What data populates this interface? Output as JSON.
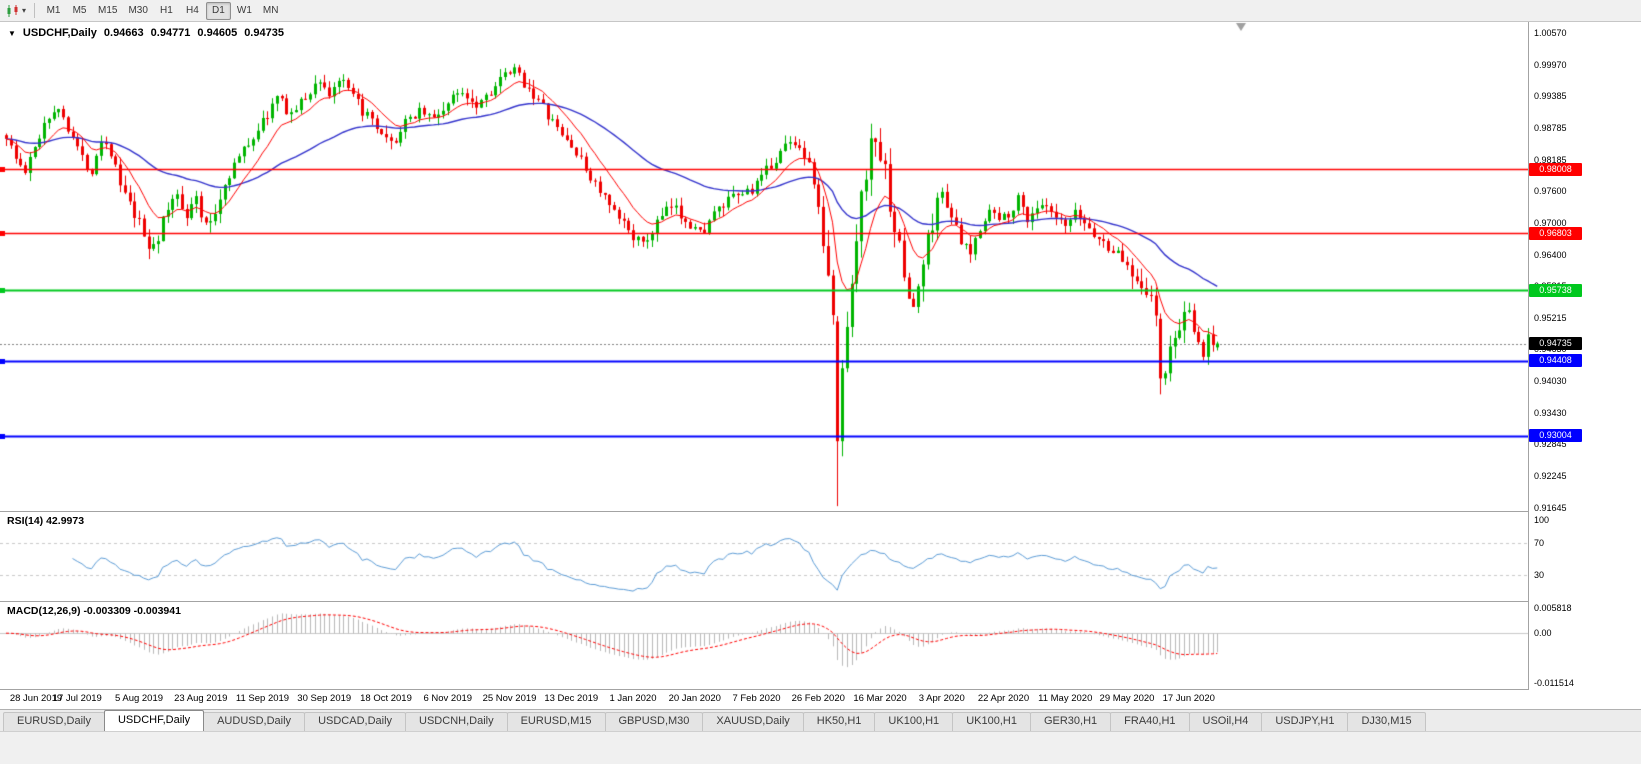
{
  "icons": {
    "chart_menu_arrow": "▼",
    "toolbar_dropdown": "▾"
  },
  "toolbar": {
    "chart_type_icon": "candlestick-chart-icon",
    "timeframes": [
      "M1",
      "M5",
      "M15",
      "M30",
      "H1",
      "H4",
      "D1",
      "W1",
      "MN"
    ],
    "active_timeframe": "D1"
  },
  "chart_data": {
    "type": "candlestick",
    "symbol": "USDCHF",
    "period": "Daily",
    "title": "USDCHF,Daily",
    "ohlc_text": {
      "o": "0.94663",
      "h": "0.94771",
      "l": "0.94605",
      "c": "0.94735"
    },
    "bid": 0.94735,
    "ylim": [
      0.91645,
      1.0057
    ],
    "y_ticks": [
      "1.00570",
      "0.99970",
      "0.99385",
      "0.98785",
      "0.98185",
      "0.97600",
      "0.97000",
      "0.96400",
      "0.95815",
      "0.95215",
      "0.94630",
      "0.94030",
      "0.93430",
      "0.92845",
      "0.92245",
      "0.91645"
    ],
    "x_tick_labels": [
      "28 Jun 2019",
      "17 Jul 2019",
      "5 Aug 2019",
      "23 Aug 2019",
      "11 Sep 2019",
      "30 Sep 2019",
      "18 Oct 2019",
      "6 Nov 2019",
      "25 Nov 2019",
      "13 Dec 2019",
      "1 Jan 2020",
      "20 Jan 2020",
      "7 Feb 2020",
      "26 Feb 2020",
      "16 Mar 2020",
      "3 Apr 2020",
      "22 Apr 2020",
      "11 May 2020",
      "29 May 2020",
      "17 Jun 2020"
    ],
    "x_tick_indices": [
      2,
      15,
      28,
      41,
      54,
      67,
      80,
      93,
      106,
      119,
      132,
      145,
      158,
      171,
      184,
      197,
      210,
      223,
      236,
      249
    ],
    "n_candles": 256,
    "seed": 1337,
    "base_volatility": 0.0011,
    "vol_zones": [
      [
        24,
        46,
        1.3
      ],
      [
        171,
        196,
        2.0
      ],
      [
        237,
        248,
        1.5
      ]
    ],
    "price_path": [
      [
        0,
        0.9865
      ],
      [
        2,
        0.982
      ],
      [
        4,
        0.9795
      ],
      [
        6,
        0.984
      ],
      [
        8,
        0.989
      ],
      [
        10,
        0.9915
      ],
      [
        12,
        0.99
      ],
      [
        14,
        0.9865
      ],
      [
        16,
        0.982
      ],
      [
        18,
        0.98
      ],
      [
        20,
        0.986
      ],
      [
        22,
        0.9835
      ],
      [
        24,
        0.977
      ],
      [
        26,
        0.973
      ],
      [
        28,
        0.9695
      ],
      [
        30,
        0.9655
      ],
      [
        32,
        0.9675
      ],
      [
        34,
        0.9725
      ],
      [
        36,
        0.9755
      ],
      [
        38,
        0.972
      ],
      [
        40,
        0.9745
      ],
      [
        42,
        0.969
      ],
      [
        44,
        0.972
      ],
      [
        46,
        0.9775
      ],
      [
        48,
        0.981
      ],
      [
        51,
        0.985
      ],
      [
        54,
        0.989
      ],
      [
        57,
        0.9935
      ],
      [
        60,
        0.9905
      ],
      [
        63,
        0.9935
      ],
      [
        66,
        0.997
      ],
      [
        68,
        0.994
      ],
      [
        70,
        0.997
      ],
      [
        73,
        0.9935
      ],
      [
        76,
        0.99
      ],
      [
        79,
        0.986
      ],
      [
        81,
        0.9845
      ],
      [
        84,
        0.9885
      ],
      [
        87,
        0.9915
      ],
      [
        90,
        0.9895
      ],
      [
        93,
        0.9925
      ],
      [
        96,
        0.995
      ],
      [
        99,
        0.9925
      ],
      [
        102,
        0.995
      ],
      [
        105,
        0.9975
      ],
      [
        107,
        0.9985
      ],
      [
        110,
        0.9955
      ],
      [
        113,
        0.9915
      ],
      [
        116,
        0.9875
      ],
      [
        119,
        0.9845
      ],
      [
        122,
        0.98
      ],
      [
        125,
        0.976
      ],
      [
        128,
        0.9715
      ],
      [
        131,
        0.969
      ],
      [
        134,
        0.9655
      ],
      [
        137,
        0.97
      ],
      [
        140,
        0.973
      ],
      [
        143,
        0.971
      ],
      [
        146,
        0.968
      ],
      [
        149,
        0.9715
      ],
      [
        152,
        0.974
      ],
      [
        155,
        0.9755
      ],
      [
        158,
        0.977
      ],
      [
        161,
        0.981
      ],
      [
        164,
        0.9845
      ],
      [
        166,
        0.9855
      ],
      [
        168,
        0.983
      ],
      [
        170,
        0.978
      ],
      [
        171,
        0.972
      ],
      [
        172,
        0.966
      ],
      [
        173,
        0.959
      ],
      [
        174,
        0.952
      ],
      [
        175,
        0.929
      ],
      [
        176,
        0.943
      ],
      [
        177,
        0.952
      ],
      [
        178,
        0.96
      ],
      [
        179,
        0.968
      ],
      [
        180,
        0.9745
      ],
      [
        181,
        0.98
      ],
      [
        182,
        0.984
      ],
      [
        183,
        0.9862
      ],
      [
        185,
        0.979
      ],
      [
        187,
        0.9695
      ],
      [
        189,
        0.96
      ],
      [
        191,
        0.9535
      ],
      [
        193,
        0.9625
      ],
      [
        195,
        0.9705
      ],
      [
        197,
        0.976
      ],
      [
        199,
        0.9715
      ],
      [
        201,
        0.966
      ],
      [
        203,
        0.964
      ],
      [
        205,
        0.9695
      ],
      [
        207,
        0.9725
      ],
      [
        209,
        0.9705
      ],
      [
        211,
        0.972
      ],
      [
        213,
        0.9745
      ],
      [
        215,
        0.971
      ],
      [
        217,
        0.973
      ],
      [
        219,
        0.9725
      ],
      [
        221,
        0.9705
      ],
      [
        223,
        0.969
      ],
      [
        225,
        0.9715
      ],
      [
        227,
        0.97
      ],
      [
        229,
        0.968
      ],
      [
        231,
        0.966
      ],
      [
        233,
        0.965
      ],
      [
        235,
        0.963
      ],
      [
        237,
        0.961
      ],
      [
        239,
        0.959
      ],
      [
        241,
        0.9555
      ],
      [
        242,
        0.952
      ],
      [
        243,
        0.9408
      ],
      [
        244,
        0.9425
      ],
      [
        245,
        0.9455
      ],
      [
        247,
        0.951
      ],
      [
        249,
        0.9525
      ],
      [
        251,
        0.947
      ],
      [
        252,
        0.9452
      ],
      [
        253,
        0.949
      ],
      [
        254,
        0.9468
      ],
      [
        255,
        0.94735
      ]
    ],
    "overrides": [
      {
        "i": 175,
        "o": 0.9515,
        "h": 0.9525,
        "l": 0.9168,
        "c": 0.929
      },
      {
        "i": 243,
        "o": 0.952,
        "h": 0.953,
        "l": 0.9378,
        "c": 0.9408
      },
      {
        "i": 255,
        "o": 0.94663,
        "h": 0.94771,
        "l": 0.94605,
        "c": 0.94735
      }
    ],
    "colors": {
      "bull": "#00b400",
      "bear": "#ee0000",
      "bid_line": "#808080",
      "bid_badge_bg": "#000000",
      "shift_marker": "#a0a0a0"
    },
    "moving_averages": [
      {
        "type": "ema",
        "period": 10,
        "color": "#ff0000",
        "width": 1
      },
      {
        "type": "ema",
        "period": 45,
        "color": "#3333cc",
        "width": 1.4
      }
    ],
    "hlines": [
      {
        "price": 0.98008,
        "label": "0.98008",
        "color": "#ff0000",
        "width": 1.4
      },
      {
        "price": 0.96803,
        "label": "0.96803",
        "color": "#ff0000",
        "width": 1.4
      },
      {
        "price": 0.95738,
        "label": "0.95738",
        "color": "#00c81e",
        "width": 2
      },
      {
        "price": 0.94408,
        "label": "0.94408",
        "color": "#0000ff",
        "width": 2
      },
      {
        "price": 0.93004,
        "label": "0.93004",
        "color": "#0000ff",
        "width": 2
      }
    ],
    "rsi": {
      "label": "RSI(14) 42.9973",
      "period": 14,
      "value": 42.9973,
      "scale": [
        0,
        100
      ],
      "levels": [
        70,
        30
      ],
      "axis_labels": [
        "100",
        "70",
        "30"
      ],
      "color": "#5b9bd5",
      "level_color": "#c8c8c8"
    },
    "macd": {
      "label": "MACD(12,26,9) -0.003309 -0.003941",
      "fast": 12,
      "slow": 26,
      "signal_period": 9,
      "value": -0.003309,
      "signal_value": -0.003941,
      "range_min": -0.011514,
      "range_max": 0.005818,
      "axis_labels": [
        "0.005818",
        "0.00",
        "-0.011514"
      ],
      "hist_color": "#b9b9b9",
      "signal_color": "#ff0000",
      "zero_color": "#c8c8c8"
    }
  },
  "tabs": {
    "active_index": 1,
    "items": [
      "EURUSD,Daily",
      "USDCHF,Daily",
      "AUDUSD,Daily",
      "USDCAD,Daily",
      "USDCNH,Daily",
      "EURUSD,M15",
      "GBPUSD,M30",
      "XAUUSD,Daily",
      "HK50,H1",
      "UK100,H1",
      "UK100,H1",
      "GER30,H1",
      "FRA40,H1",
      "USOil,H4",
      "USDJPY,H1",
      "DJ30,M15"
    ]
  }
}
